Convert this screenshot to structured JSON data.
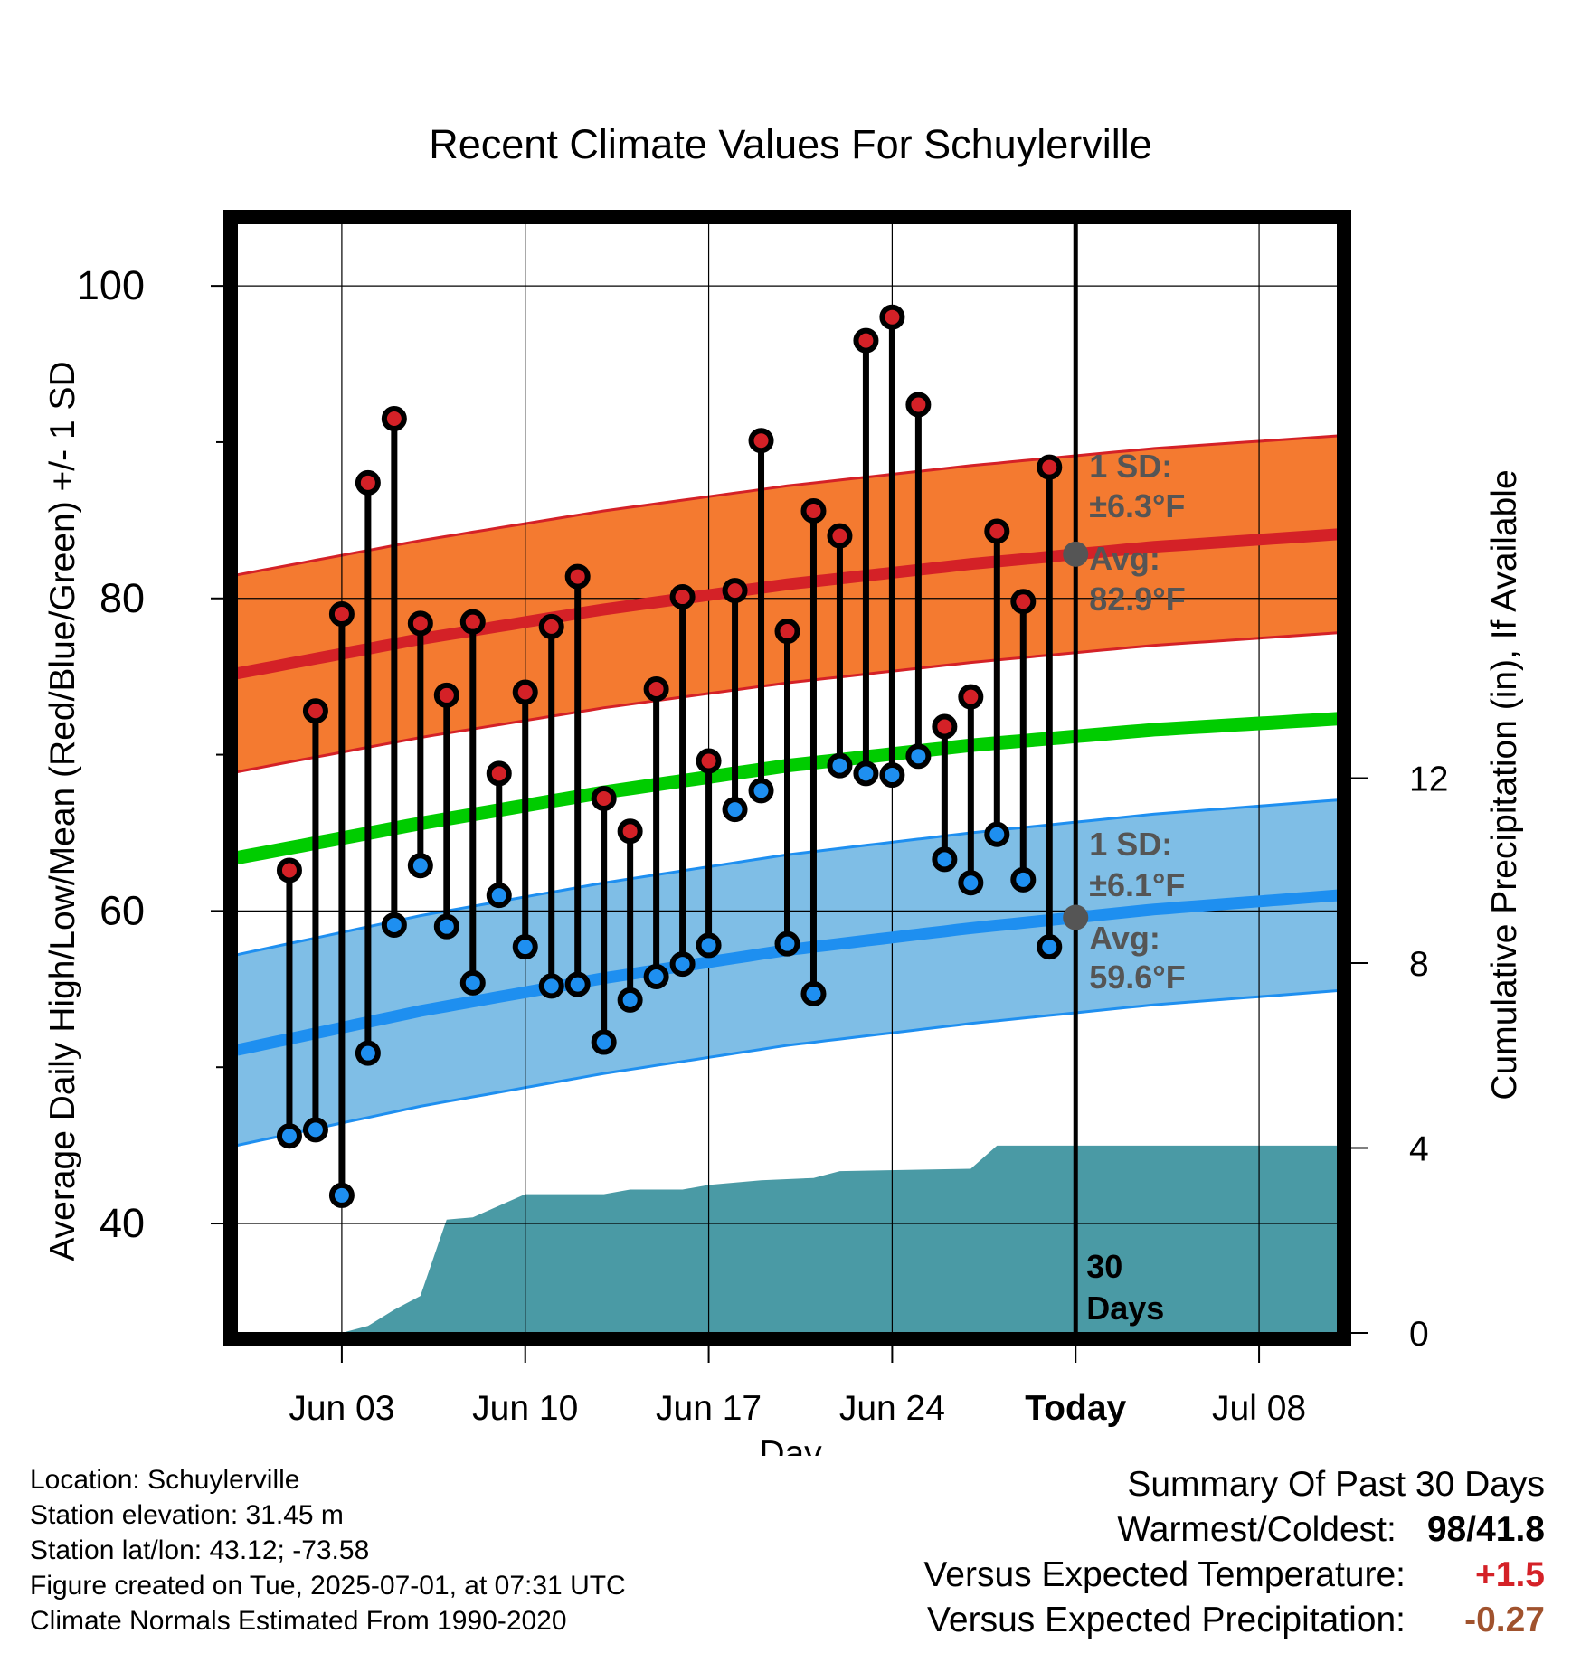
{
  "chart_data": {
    "type": "line",
    "title": "Recent Climate Values For Schuylerville",
    "xlabel": "Day",
    "ylabel": "Average Daily High/Low/Mean (Red/Blue/Green) +/- 1 SD",
    "y2label": "Cumulative Precipitation (in), If Available",
    "ylim": [
      33,
      104
    ],
    "y2lim": [
      0,
      24
    ],
    "xlim": [
      "May 30",
      "Jul 11"
    ],
    "x_ticks": [
      "Jun 03",
      "Jun 10",
      "Jun 17",
      "Jun 24",
      "Today",
      "Jul 08"
    ],
    "y_ticks": [
      "40",
      "60",
      "80",
      "100"
    ],
    "y2_ticks": [
      "0",
      "4",
      "8",
      "12"
    ],
    "today": "Jul 01",
    "window_label_1": "30",
    "window_label_2": "Days",
    "observed": {
      "dates": [
        "Jun 01",
        "Jun 02",
        "Jun 03",
        "Jun 04",
        "Jun 05",
        "Jun 06",
        "Jun 07",
        "Jun 08",
        "Jun 09",
        "Jun 10",
        "Jun 11",
        "Jun 12",
        "Jun 13",
        "Jun 14",
        "Jun 15",
        "Jun 16",
        "Jun 17",
        "Jun 18",
        "Jun 19",
        "Jun 20",
        "Jun 21",
        "Jun 22",
        "Jun 23",
        "Jun 24",
        "Jun 25",
        "Jun 26",
        "Jun 27",
        "Jun 28",
        "Jun 29",
        "Jun 30"
      ],
      "high": [
        62.6,
        72.8,
        79.0,
        87.4,
        91.5,
        78.4,
        73.8,
        78.5,
        68.8,
        74.0,
        78.2,
        81.4,
        67.2,
        65.1,
        74.2,
        80.1,
        69.6,
        80.5,
        90.1,
        77.9,
        85.6,
        84.0,
        96.5,
        98.0,
        92.4,
        71.8,
        73.7,
        84.3,
        79.8,
        88.4
      ],
      "low": [
        45.6,
        46.0,
        41.8,
        50.9,
        59.1,
        62.9,
        59.0,
        55.4,
        61.0,
        57.7,
        55.2,
        55.3,
        51.6,
        54.3,
        55.8,
        56.6,
        57.8,
        66.5,
        67.7,
        57.9,
        54.7,
        69.3,
        68.8,
        68.7,
        69.9,
        63.3,
        61.8,
        64.9,
        62.0,
        57.7
      ]
    },
    "normals": {
      "dates": [
        "May 30",
        "Jun 06",
        "Jun 13",
        "Jun 20",
        "Jun 27",
        "Jul 04",
        "Jul 11"
      ],
      "high_mean": [
        75.2,
        77.4,
        79.3,
        80.9,
        82.2,
        83.3,
        84.1
      ],
      "high_sd": 6.3,
      "low_mean": [
        51.1,
        53.6,
        55.7,
        57.5,
        58.9,
        60.1,
        61.0
      ],
      "low_sd": 6.1,
      "mean": [
        63.4,
        65.6,
        67.6,
        69.3,
        70.6,
        71.6,
        72.3
      ]
    },
    "precip_cumulative": {
      "dates": [
        "May 30",
        "Jun 03",
        "Jun 04",
        "Jun 05",
        "Jun 06",
        "Jun 07",
        "Jun 08",
        "Jun 09",
        "Jun 10",
        "Jun 13",
        "Jun 14",
        "Jun 16",
        "Jun 17",
        "Jun 19",
        "Jun 21",
        "Jun 22",
        "Jun 27",
        "Jun 28",
        "Jul 01",
        "Jul 11"
      ],
      "values": [
        0,
        0,
        0.15,
        0.5,
        0.8,
        2.45,
        2.5,
        2.75,
        3.0,
        3.0,
        3.1,
        3.1,
        3.2,
        3.3,
        3.35,
        3.5,
        3.55,
        4.05,
        4.05,
        4.05
      ]
    },
    "annotations": {
      "high_sd_label_1": "1 SD:",
      "high_sd_label_2": "±6.3°F",
      "high_avg_label_1": "Avg:",
      "high_avg_label_2": "82.9°F",
      "low_sd_label_1": "1 SD:",
      "low_sd_label_2": "±6.1°F",
      "low_avg_label_1": "Avg:",
      "low_avg_label_2": "59.6°F"
    },
    "colors": {
      "high_band": "#f47a30",
      "high_line": "#d42127",
      "low_band": "#7fbee6",
      "low_line": "#1e8ff0",
      "mean_line": "#00cc00",
      "precip": "#4a9aa5",
      "high_marker": "#d42127",
      "low_marker": "#1e8ff0",
      "annotation": "#555555"
    }
  },
  "info": {
    "location": "Location: Schuylerville",
    "elevation": "Station elevation: 31.45 m",
    "latlon": "Station lat/lon: 43.12; -73.58",
    "created": "Figure created on Tue, 2025-07-01, at 07:31 UTC",
    "normals": "Climate Normals Estimated From 1990-2020"
  },
  "summary": {
    "heading": "Summary Of Past 30 Days",
    "warm_cold_label": "Warmest/Coldest:",
    "warmest": "98",
    "coldest": "/41.8",
    "temp_label": "Versus Expected Temperature:",
    "temp_value": "+1.5",
    "temp_color": "#d42127",
    "precip_label": "Versus Expected Precipitation:",
    "precip_value": "-0.27",
    "precip_color": "#a0522d"
  }
}
